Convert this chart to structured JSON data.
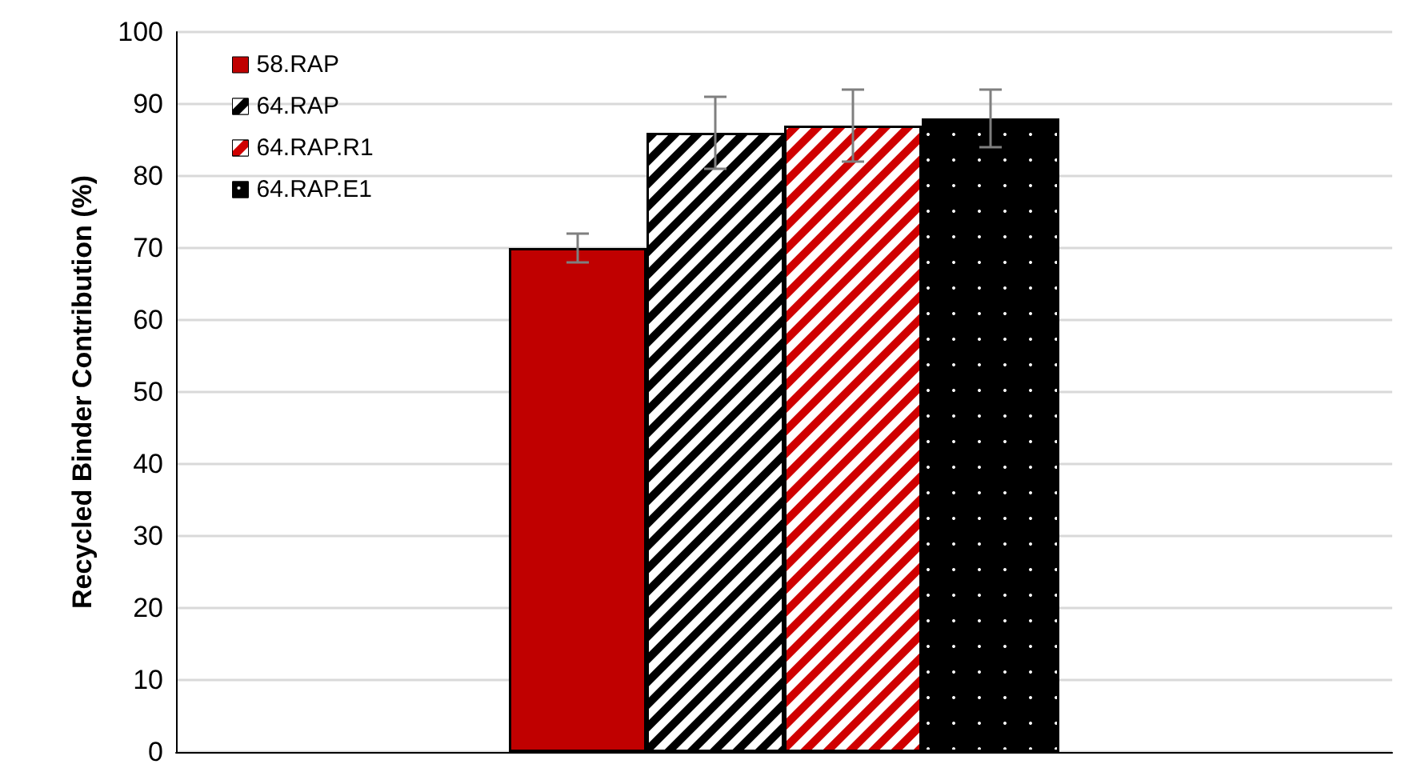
{
  "chart_data": {
    "type": "bar",
    "ylabel": "Recycled Binder Contribution (%)",
    "categories": [
      null
    ],
    "series": [
      {
        "name": "58.RAP",
        "color": "#c00000",
        "values": [
          70
        ],
        "errors": [
          2
        ]
      },
      {
        "name": "64.RAP",
        "color": "#000000",
        "values": [
          86
        ],
        "errors": [
          5
        ]
      },
      {
        "name": "64.RAP.R1",
        "color": "#d00000",
        "values": [
          87
        ],
        "errors": [
          5
        ]
      },
      {
        "name": "64.RAP.E1",
        "color": "#000000",
        "values": [
          88
        ],
        "errors": [
          4
        ]
      }
    ],
    "ylim": [
      0,
      100
    ],
    "yticks": [
      0,
      10,
      20,
      30,
      40,
      50,
      60,
      70,
      80,
      90,
      100
    ],
    "grid": "y",
    "legend": "top left"
  }
}
